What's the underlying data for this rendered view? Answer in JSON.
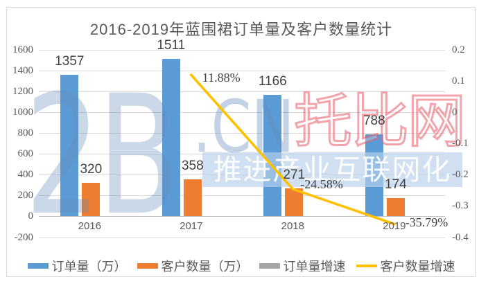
{
  "chart_data": {
    "type": "combo",
    "title": "2016-2019年蓝围裙订单量及客户数量统计",
    "categories": [
      "2016",
      "2017",
      "2018",
      "2019"
    ],
    "series": [
      {
        "name": "订单量（万）",
        "type": "bar",
        "axis": "left",
        "color": "#5B9BD5",
        "values": [
          1357,
          1511,
          1166,
          788
        ],
        "data_labels": [
          "1357",
          "1511",
          "1166",
          "788"
        ]
      },
      {
        "name": "客户数量（万）",
        "type": "bar",
        "axis": "left",
        "color": "#ED7D31",
        "values": [
          320,
          358,
          271,
          174
        ],
        "data_labels": [
          "320",
          "358",
          "271",
          "174"
        ]
      },
      {
        "name": "订单量增速",
        "type": "bar",
        "axis": "right",
        "color": "#A5A5A5",
        "values": [
          null,
          null,
          null,
          null
        ],
        "data_labels": [
          "",
          "",
          "",
          ""
        ]
      },
      {
        "name": "客户数量增速",
        "type": "line",
        "axis": "right",
        "color": "#FFC000",
        "values": [
          null,
          0.1188,
          -0.2458,
          -0.3579
        ],
        "data_labels": [
          "",
          "11.88%",
          "-24.58%",
          "-35.79%"
        ]
      }
    ],
    "left_axis": {
      "min": -200,
      "max": 1600,
      "step": 200,
      "ticks": [
        "1600",
        "1400",
        "1200",
        "1000",
        "800",
        "600",
        "400",
        "200",
        "0",
        "-200"
      ]
    },
    "right_axis": {
      "min": -0.4,
      "max": 0.2,
      "step": 0.1,
      "ticks": [
        "0.2",
        "0.1",
        "0",
        "-0.1",
        "-0.2",
        "-0.3",
        "-0.4"
      ]
    },
    "grid": true,
    "legend_position": "bottom"
  },
  "watermark": {
    "big_text": "2B",
    "cn_text": ".CN",
    "brand_text": "托比网",
    "banner_text": "推进产业互联网化",
    "blue_color": "#C9D8EA",
    "red_color": "#E8596B",
    "banner_fill": "#D3E0F0"
  },
  "colors": {
    "grid": "#D9D9D9",
    "axis_line": "#BFBFBF",
    "frame_border": "#D9D9D9",
    "title_text": "#595959",
    "tick_text": "#595959",
    "data_label_text": "#404040",
    "background": "#FFFFFF"
  }
}
